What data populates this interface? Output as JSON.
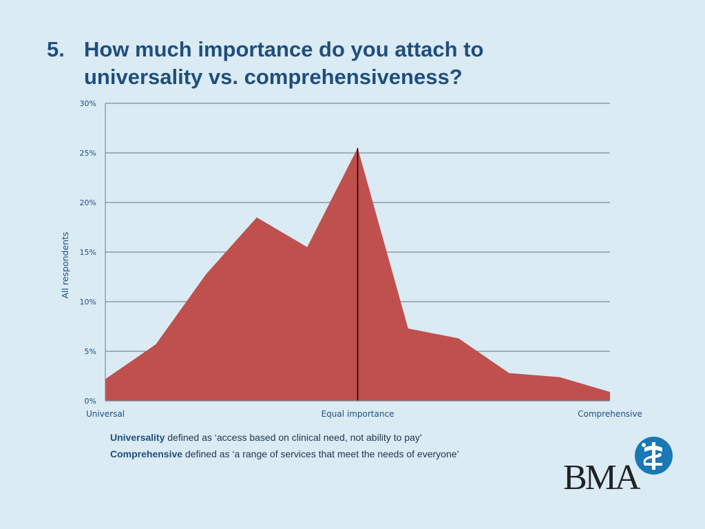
{
  "title": {
    "number": "5.",
    "text": "How much importance do you attach to universality vs. comprehensiveness?"
  },
  "chart_data": {
    "type": "area",
    "title": "How much importance do you attach to universality vs. comprehensiveness?",
    "ylabel": "All respondents",
    "xlabel": "",
    "x": [
      1,
      2,
      3,
      4,
      5,
      6,
      7,
      8,
      9,
      10,
      11
    ],
    "x_tick_labels": [
      {
        "at": 1,
        "label": "Universal"
      },
      {
        "at": 6,
        "label": "Equal importance"
      },
      {
        "at": 11,
        "label": "Comprehensive"
      }
    ],
    "series": [
      {
        "name": "All respondents",
        "color": "#c0504d",
        "values": [
          2.2,
          5.7,
          12.8,
          18.5,
          15.5,
          25.5,
          7.3,
          6.3,
          2.8,
          2.4,
          0.9
        ]
      }
    ],
    "ylim": [
      0,
      30
    ],
    "yticks": [
      0,
      5,
      10,
      15,
      20,
      25,
      30
    ],
    "ytick_labels": [
      "0%",
      "5%",
      "10%",
      "15%",
      "20%",
      "25%",
      "30%"
    ],
    "grid": true,
    "reference_line": {
      "at": 6,
      "label": "Equal importance",
      "color": "#000000"
    }
  },
  "definitions": [
    {
      "term": "Universality",
      "text": " defined as ‘access based on clinical need, not ability to pay’"
    },
    {
      "term": "Comprehensive",
      "text": " defined as ‘a range of services that meet the needs of everyone’"
    }
  ],
  "logo": {
    "text": "BMA",
    "color": "#1a78b5"
  }
}
